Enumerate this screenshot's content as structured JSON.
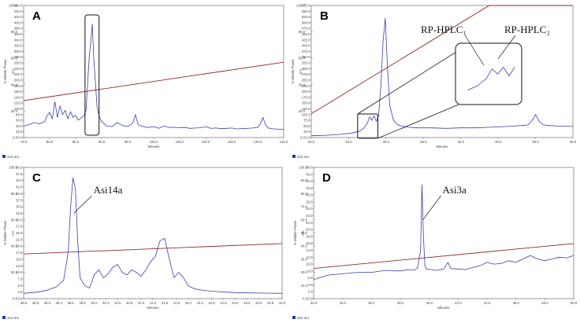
{
  "chart_data": [
    {
      "type": "line",
      "panel_label": "A",
      "xlabel": "Minutes",
      "ylabel_left": "% Mobile Phase",
      "ylabel_right": "mV",
      "xlim": [
        75.0,
        125.0
      ],
      "xticks": [
        "75.0",
        "80.0",
        "85.0",
        "90.0",
        "95.0",
        "100.0",
        "105.0",
        "110.0",
        "115.0",
        "120.0",
        "125.0"
      ],
      "ylim_left": [
        0,
        100
      ],
      "yticks_left": [
        "0.0",
        "20.0",
        "40.0",
        "60.0",
        "80.0",
        "100.0"
      ],
      "ylim_right": [
        0,
        460
      ],
      "yticks_right": [
        "0.0",
        "20.0",
        "40.0",
        "60.0",
        "80.0",
        "100.0",
        "120.0",
        "140.0",
        "160.0",
        "180.0",
        "200.0",
        "220.0",
        "240.0",
        "260.0",
        "280.0",
        "300.0",
        "320.0",
        "340.0",
        "360.0",
        "380.0",
        "400.0",
        "420.0",
        "440.0",
        "460.0"
      ],
      "footer": "214 nm",
      "gradient": {
        "x": [
          75.0,
          125.0
        ],
        "y": [
          28,
          57
        ]
      },
      "trace": {
        "x": [
          75,
          76,
          77,
          78,
          79,
          79.5,
          80,
          80.5,
          81,
          81.5,
          82,
          82.5,
          83,
          83.5,
          84,
          84.5,
          85,
          85.5,
          86,
          86.5,
          87,
          87.3,
          87.6,
          87.9,
          88.2,
          88.5,
          88.8,
          89.1,
          89.5,
          90,
          91,
          92,
          93,
          94,
          95,
          96,
          96.5,
          97,
          98,
          99,
          100,
          101,
          102,
          103,
          104,
          105,
          106,
          107,
          108,
          109,
          110,
          111,
          112,
          113,
          114,
          115,
          116,
          117,
          118,
          119,
          120,
          120.5,
          121,
          121.5,
          122,
          123,
          124,
          125
        ],
        "y": [
          40,
          45,
          52,
          48,
          55,
          75,
          88,
          65,
          125,
          70,
          110,
          80,
          95,
          65,
          90,
          70,
          78,
          60,
          68,
          74,
          95,
          190,
          280,
          330,
          395,
          270,
          190,
          110,
          75,
          55,
          40,
          38,
          52,
          42,
          38,
          50,
          80,
          45,
          38,
          35,
          38,
          32,
          40,
          35,
          36,
          34,
          35,
          32,
          33,
          34,
          38,
          32,
          33,
          31,
          32,
          33,
          30,
          31,
          32,
          33,
          35,
          48,
          70,
          45,
          33,
          30,
          29,
          28
        ]
      },
      "highlight_box": [
        86.8,
        89.5
      ]
    },
    {
      "type": "line",
      "panel_label": "B",
      "xlabel": "Minutes",
      "ylabel_left": "% Mobile Phase",
      "ylabel_right": "mV",
      "xlim": [
        20.0,
        55.0
      ],
      "xticks": [
        "20.0",
        "25.0",
        "30.0",
        "35.0",
        "40.0",
        "45.0",
        "50.0",
        "55.0"
      ],
      "ylim_left": [
        0,
        100
      ],
      "yticks_left": [
        "0.0",
        "20.0",
        "40.0",
        "60.0",
        "80.0",
        "100.0"
      ],
      "ylim_right": [
        0,
        575
      ],
      "yticks_right": [
        "0.0",
        "25.0",
        "50.0",
        "75.0",
        "100.0",
        "125.0",
        "150.0",
        "175.0",
        "200.0",
        "225.0",
        "250.0",
        "275.0",
        "300.0",
        "325.0",
        "350.0",
        "375.0",
        "400.0",
        "425.0",
        "450.0",
        "475.0",
        "500.0",
        "525.0",
        "550.0",
        "575.0"
      ],
      "footer": "214 nm",
      "gradient": {
        "x": [
          20.0,
          43.8,
          55.0
        ],
        "y": [
          18,
          100,
          100
        ]
      },
      "trace": {
        "x": [
          20,
          22,
          24,
          25.5,
          26.5,
          27,
          27.5,
          27.8,
          28.1,
          28.4,
          28.7,
          29,
          29.3,
          29.6,
          29.9,
          30.2,
          30.5,
          31,
          31.5,
          32,
          33,
          34,
          36,
          38,
          40,
          42,
          44,
          46,
          47,
          48,
          49,
          49.5,
          50,
          50.5,
          51,
          52,
          53,
          54,
          55
        ],
        "y": [
          8,
          10,
          14,
          20,
          28,
          40,
          62,
          90,
          75,
          95,
          70,
          95,
          220,
          420,
          520,
          300,
          140,
          75,
          58,
          50,
          45,
          42,
          42,
          40,
          42,
          42,
          45,
          48,
          50,
          52,
          55,
          72,
          100,
          70,
          55,
          52,
          50,
          50,
          48
        ]
      },
      "highlight_box": [
        26.2,
        28.9
      ],
      "inset_labels": [
        "RP-HPLC₁",
        "RP-HPLC₂"
      ]
    },
    {
      "type": "line",
      "panel_label": "C",
      "xlabel": "Minutes",
      "ylabel_left": "% Mobile Phase",
      "ylabel_right": "mV",
      "xlim": [
        38.5,
        44.0
      ],
      "xticks": [
        "38.5",
        "38.8",
        "39.0",
        "39.3",
        "39.5",
        "39.8",
        "40.0",
        "40.3",
        "40.5",
        "40.8",
        "41.0",
        "41.3",
        "41.5",
        "41.8",
        "42.0",
        "42.3",
        "42.5",
        "42.8",
        "43.0",
        "43.3",
        "43.5",
        "43.8",
        "44.0"
      ],
      "ylim_left": [
        0,
        100
      ],
      "yticks_left": [
        "0.0",
        "20.0",
        "40.0",
        "60.0",
        "80.0",
        "100.0"
      ],
      "ylim_right": [
        0,
        50
      ],
      "yticks_right": [
        "0.0",
        "2.5",
        "5.0",
        "7.5",
        "10.0",
        "12.5",
        "15.0",
        "17.5",
        "20.0",
        "22.5",
        "25.0",
        "27.5",
        "30.0",
        "32.5",
        "35.0",
        "37.5",
        "40.0",
        "42.5",
        "45.0",
        "47.5",
        "50.0"
      ],
      "footer": "214 nm",
      "gradient": {
        "x": [
          38.5,
          44.0
        ],
        "y": [
          34,
          42
        ]
      },
      "trace": {
        "x": [
          38.5,
          38.8,
          39.0,
          39.2,
          39.35,
          39.45,
          39.5,
          39.55,
          39.6,
          39.65,
          39.7,
          39.8,
          39.9,
          40.0,
          40.1,
          40.2,
          40.3,
          40.4,
          40.5,
          40.6,
          40.7,
          40.8,
          40.9,
          41.0,
          41.1,
          41.2,
          41.3,
          41.4,
          41.5,
          41.6,
          41.7,
          41.8,
          41.9,
          42.0,
          42.1,
          42.2,
          42.4,
          42.6,
          42.8,
          43.0,
          43.3,
          43.6,
          44.0
        ],
        "y": [
          2.0,
          2.5,
          3.2,
          4.5,
          7.0,
          18,
          35,
          46,
          42,
          22,
          8,
          5,
          4,
          9,
          11,
          8,
          9.5,
          12,
          13,
          10,
          9,
          11,
          10,
          8.5,
          11,
          14,
          16,
          22,
          23,
          15,
          8,
          10,
          8,
          5,
          4,
          3.5,
          3.0,
          2.7,
          2.5,
          2.3,
          2.2,
          2.1,
          2.0
        ]
      },
      "annotation": {
        "text": "Asi14a",
        "x": 39.55
      }
    },
    {
      "type": "line",
      "panel_label": "D",
      "xlabel": "Minutes",
      "ylabel_left": "% Mobile Phase",
      "ylabel_right": "mV",
      "xlim": [
        32.0,
        50.0
      ],
      "xticks": [
        "32.0",
        "34.0",
        "36.0",
        "38.0",
        "40.0",
        "42.0",
        "44.0",
        "46.0",
        "48.0",
        "50.0"
      ],
      "ylim_left": [
        0,
        100
      ],
      "yticks_left": [
        "0.0",
        "10.0",
        "20.0",
        "30.0",
        "40.0",
        "50.0",
        "60.0",
        "70.0",
        "80.0",
        "90.0",
        "100.0"
      ],
      "ylim_right": [
        0,
        38
      ],
      "yticks_right": [
        "0.0",
        "2.0",
        "4.0",
        "6.0",
        "8.0",
        "10.0",
        "12.0",
        "14.0",
        "16.0",
        "18.0",
        "20.0",
        "22.0",
        "24.0",
        "26.0",
        "28.0",
        "30.0",
        "32.0",
        "34.0",
        "36.0",
        "38.0"
      ],
      "footer": "214 nm",
      "gradient": {
        "x": [
          32.0,
          50.0
        ],
        "y": [
          23,
          42
        ]
      },
      "trace": {
        "x": [
          32,
          32.5,
          33,
          34,
          35,
          36,
          37,
          38,
          38.5,
          39,
          39.2,
          39.4,
          39.5,
          39.6,
          39.7,
          39.8,
          40,
          40.5,
          41,
          41.3,
          41.5,
          42,
          42.5,
          43,
          43.5,
          44,
          44.5,
          45,
          45.5,
          46,
          46.5,
          47,
          47.5,
          48,
          48.5,
          49,
          49.5,
          50
        ],
        "y": [
          5.5,
          6.2,
          6.8,
          7.2,
          7.6,
          7.6,
          8.2,
          8.0,
          8.4,
          8.3,
          9.0,
          14,
          33,
          18,
          9.5,
          8.6,
          8.5,
          8.2,
          8.6,
          10.5,
          8.7,
          8.6,
          8.4,
          9.0,
          9.5,
          10.5,
          10.0,
          10.2,
          11.0,
          10.5,
          11.5,
          12.5,
          11.5,
          11.0,
          11.5,
          12.0,
          11.8,
          12.5
        ]
      },
      "annotation": {
        "text": "Asi3a",
        "x": 39.5
      }
    }
  ]
}
